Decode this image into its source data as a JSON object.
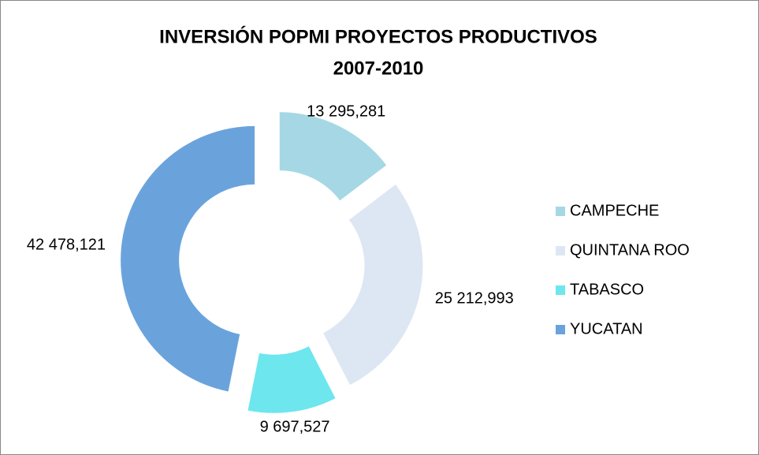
{
  "chart_data": {
    "type": "donut",
    "title": "INVERSIÓN POPMI PROYECTOS PRODUCTIVOS",
    "subtitle": "2007-2010",
    "categories": [
      "CAMPECHE",
      "QUINTANA ROO",
      "TABASCO",
      "YUCATAN"
    ],
    "values": [
      13295.281,
      25212.993,
      9697.527,
      42478.121
    ],
    "value_labels": [
      "13 295,281",
      "25 212,993",
      "9 697,527",
      "42 478,121"
    ],
    "colors": [
      "#a5d8e4",
      "#dde7f3",
      "#6de6ee",
      "#6aa3dc"
    ],
    "legend": "right"
  }
}
